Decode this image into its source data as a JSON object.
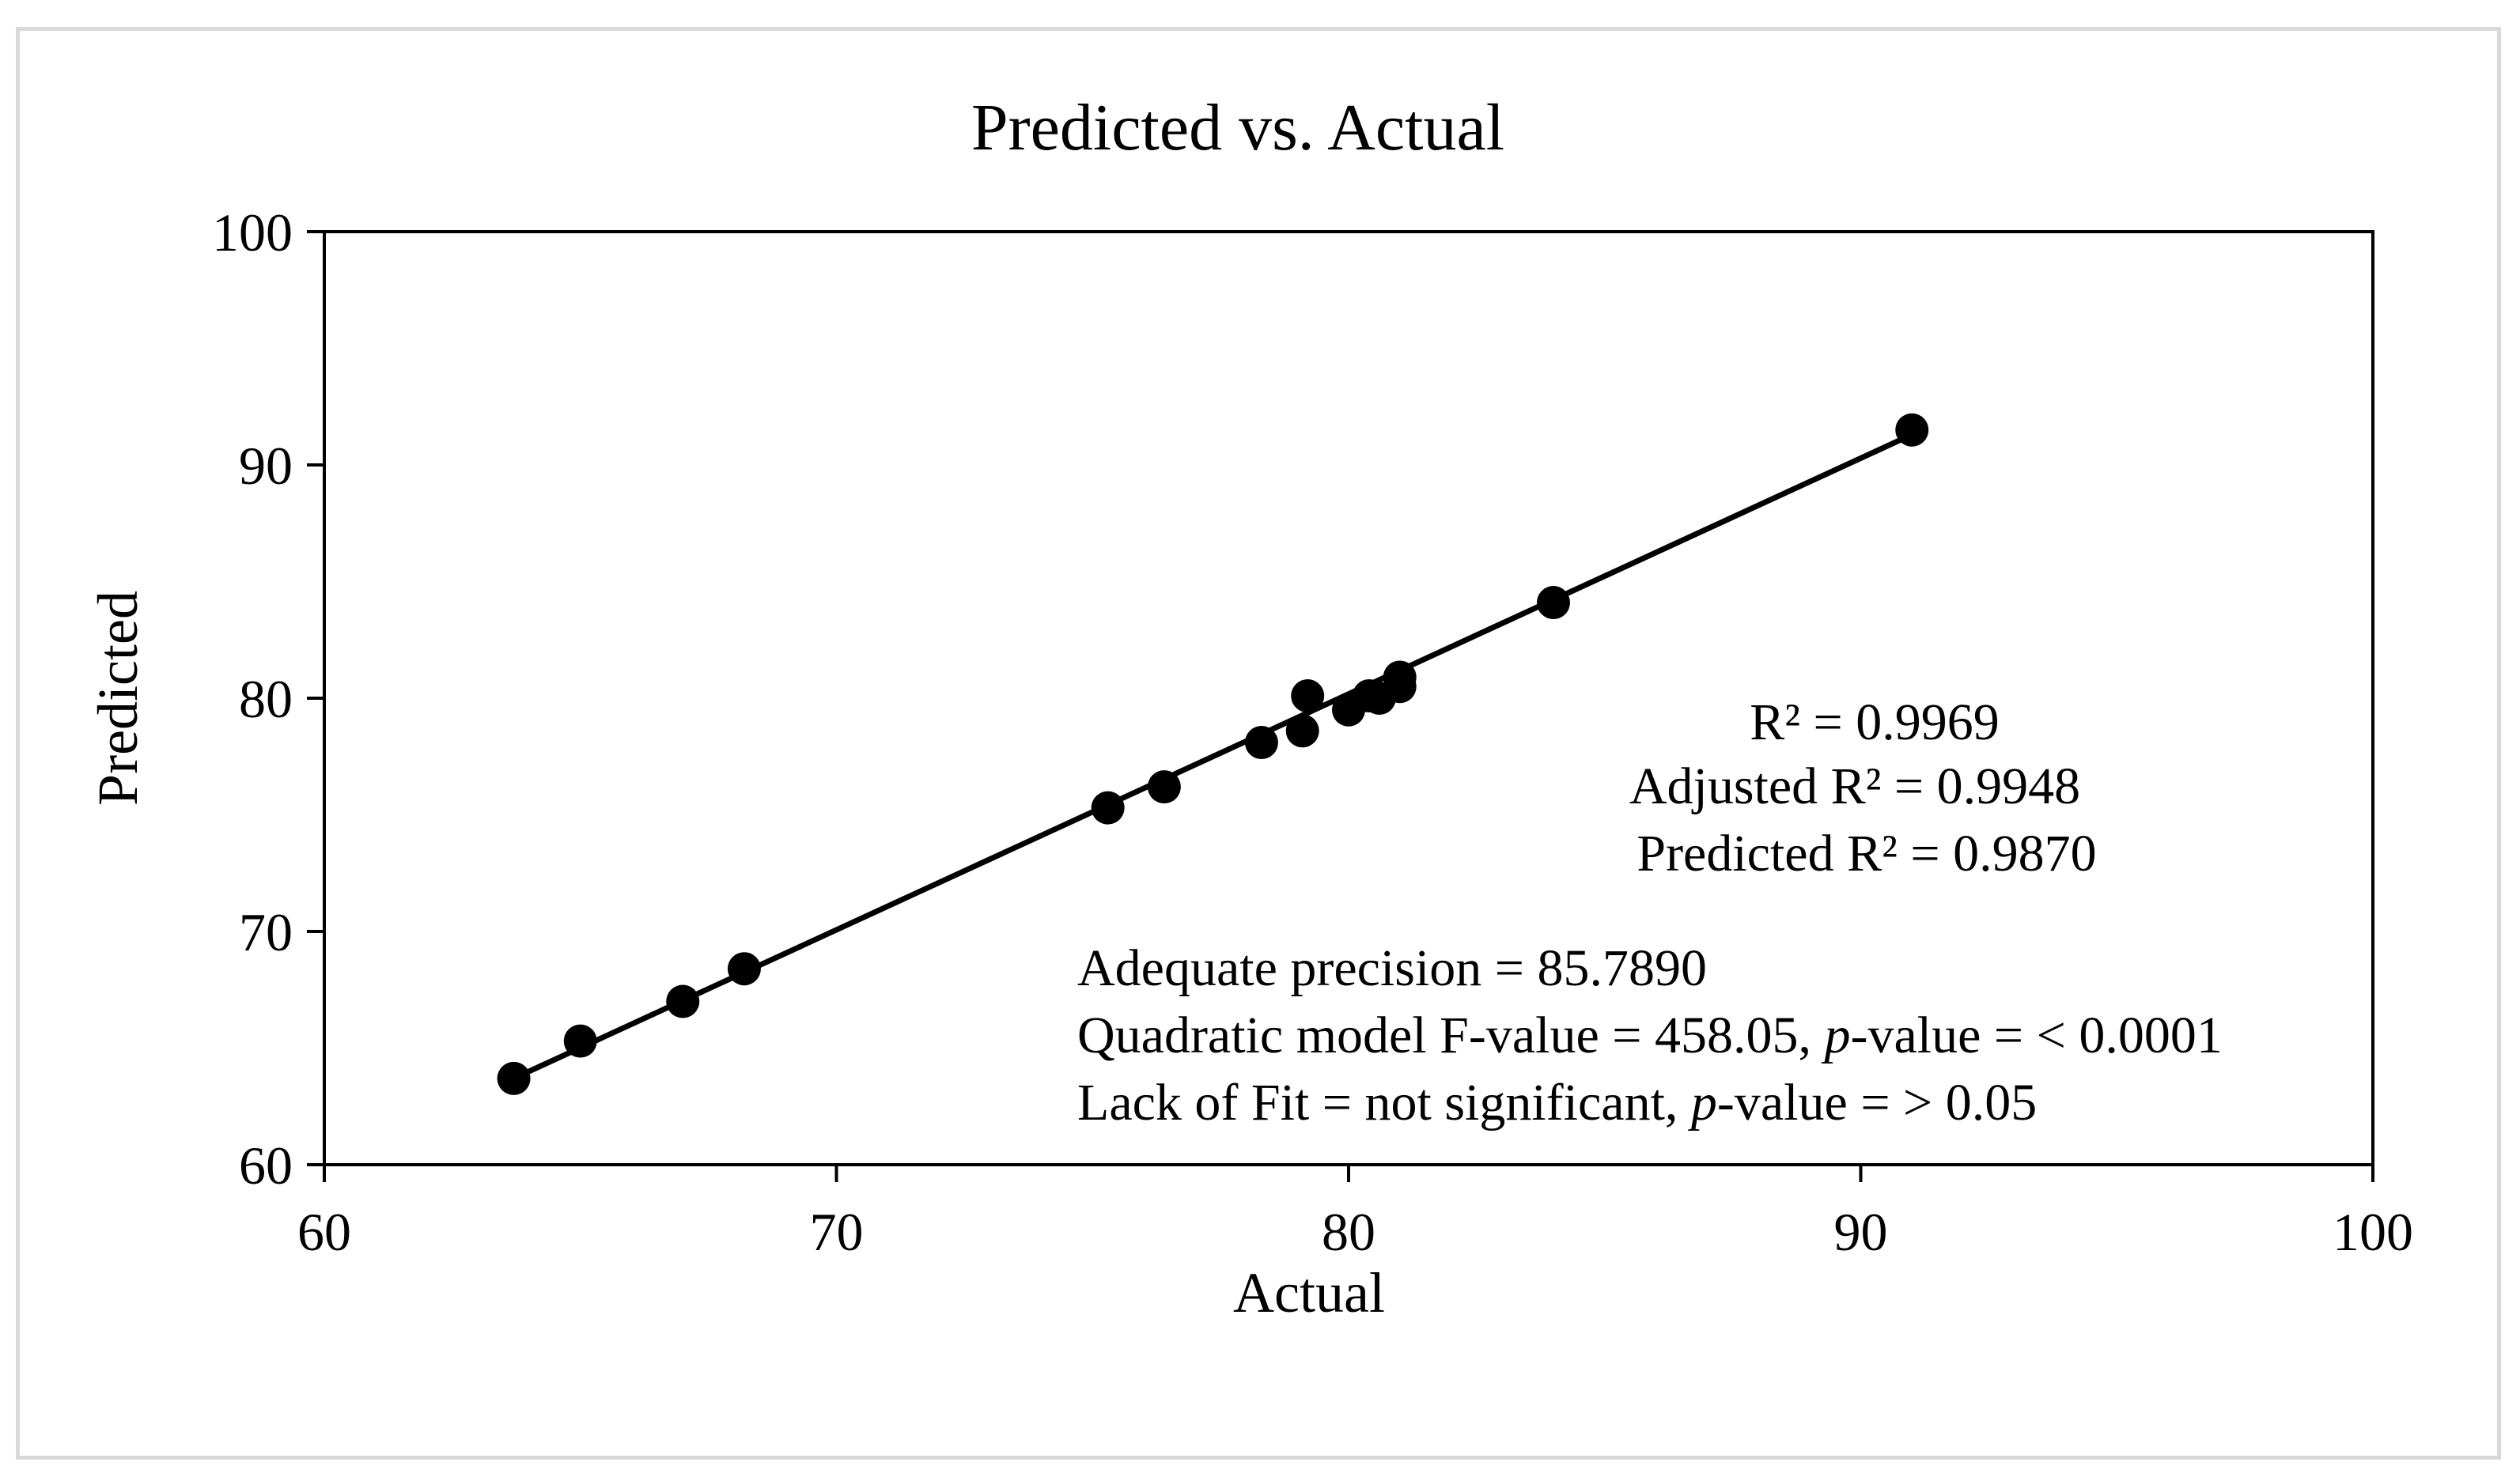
{
  "chart_data": {
    "type": "scatter",
    "title": "Predicted vs. Actual",
    "xlabel": "Actual",
    "ylabel": "Predicted",
    "xlim": [
      60,
      100
    ],
    "ylim": [
      60,
      100
    ],
    "xticks": [
      60,
      70,
      80,
      90,
      100
    ],
    "yticks": [
      60,
      70,
      80,
      90,
      100
    ],
    "grid": false,
    "series": [
      {
        "name": "Observations",
        "points": [
          {
            "x": 63.7,
            "y": 63.7
          },
          {
            "x": 65.0,
            "y": 65.3
          },
          {
            "x": 67.0,
            "y": 67.0
          },
          {
            "x": 68.2,
            "y": 68.4
          },
          {
            "x": 75.3,
            "y": 75.3
          },
          {
            "x": 76.4,
            "y": 76.2
          },
          {
            "x": 78.3,
            "y": 78.1
          },
          {
            "x": 79.1,
            "y": 78.6
          },
          {
            "x": 79.2,
            "y": 80.1
          },
          {
            "x": 80.0,
            "y": 79.5
          },
          {
            "x": 80.4,
            "y": 80.1
          },
          {
            "x": 80.6,
            "y": 80.0
          },
          {
            "x": 81.0,
            "y": 80.5
          },
          {
            "x": 81.0,
            "y": 80.9
          },
          {
            "x": 84.0,
            "y": 84.1
          },
          {
            "x": 91.0,
            "y": 91.5
          }
        ]
      }
    ],
    "fit_line": {
      "x": [
        63.7,
        91.0
      ],
      "y": [
        63.7,
        91.3
      ]
    },
    "annotations": {
      "r2_label": "R² = 0.9969",
      "adj_r2_label": "Adjusted R² = 0.9948",
      "pred_r2_label": "Predicted R² = 0.9870",
      "adequate_precision": "Adequate precision = 85.7890",
      "f_value_prefix": "Quadratic model F-value = 458.05, ",
      "p_italic": "p",
      "f_value_suffix": "-value = < 0.0001",
      "lack_of_fit_prefix": "Lack of Fit = not significant, ",
      "lack_of_fit_suffix": "-value = > 0.05"
    }
  }
}
